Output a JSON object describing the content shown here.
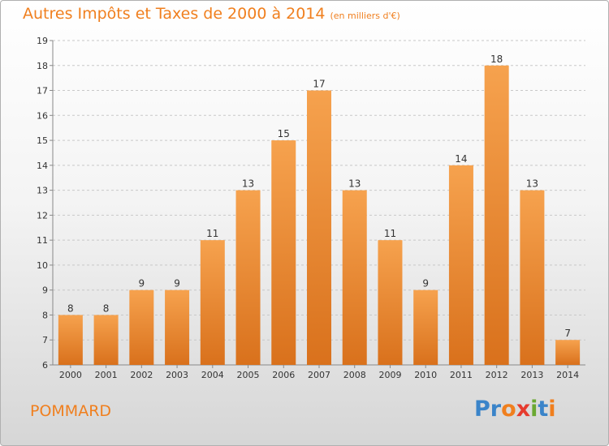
{
  "title": "Autres Impôts et Taxes de 2000 à 2014",
  "subtitle": "(en milliers d'€)",
  "commune": "POMMARD",
  "logo": {
    "text": "Proxiti",
    "letter_colors": [
      "#3a84c9",
      "#3a84c9",
      "#f07f1e",
      "#e63b2e",
      "#6aa832",
      "#3a84c9",
      "#f07f1e"
    ]
  },
  "colors": {
    "bar_top": "#f6a24e",
    "bar_bottom": "#d9711c",
    "title": "#f07f1e",
    "label": "#333333"
  },
  "chart_data": {
    "type": "bar",
    "categories": [
      "2000",
      "2001",
      "2002",
      "2003",
      "2004",
      "2005",
      "2006",
      "2007",
      "2008",
      "2009",
      "2010",
      "2011",
      "2012",
      "2013",
      "2014"
    ],
    "values": [
      8,
      8,
      9,
      9,
      11,
      13,
      15,
      17,
      13,
      11,
      9,
      14,
      18,
      13,
      7
    ],
    "data_labels": [
      "8",
      "8",
      "9",
      "9",
      "11",
      "13",
      "15",
      "17",
      "13",
      "11",
      "9",
      "14",
      "18",
      "13",
      "7"
    ],
    "ylim": [
      6,
      19
    ],
    "yticks": [
      "6",
      "7",
      "8",
      "9",
      "10",
      "11",
      "12",
      "13",
      "14",
      "15",
      "16",
      "17",
      "18",
      "19"
    ],
    "grid": true
  }
}
